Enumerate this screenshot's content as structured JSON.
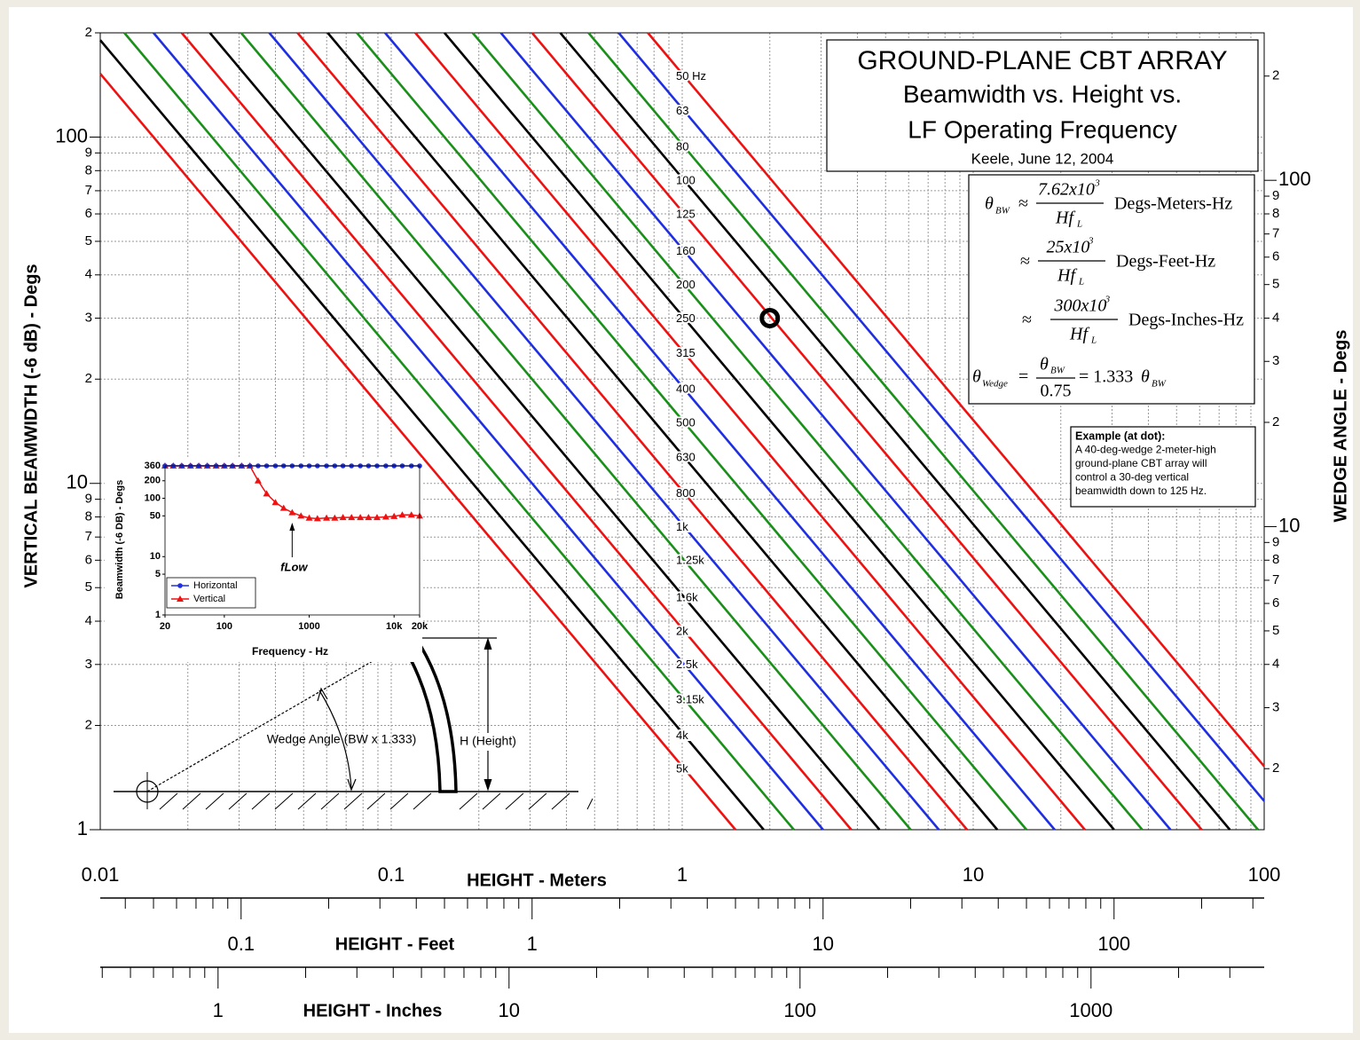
{
  "chart_data": [
    {
      "type": "line",
      "title_lines": [
        "GROUND-PLANE CBT ARRAY",
        "Beamwidth vs. Height vs.",
        "LF Operating Frequency",
        "Keele, June 12, 2004"
      ],
      "xlabel": "HEIGHT - Meters",
      "ylabel": "VERTICAL BEAMWIDTH (-6 dB) - Degs",
      "y2label": "WEDGE ANGLE - Degs",
      "log_x": true,
      "log_y": true,
      "grid": true,
      "xlim": [
        0.01,
        100
      ],
      "xticks": [
        0.01,
        0.1,
        1,
        10,
        100
      ],
      "xminor": [
        0.02,
        0.03,
        0.04,
        0.05,
        0.06,
        0.07,
        0.08,
        0.09,
        0.2,
        0.3,
        0.4,
        0.5,
        0.6,
        0.7,
        0.8,
        0.9,
        2,
        3,
        4,
        5,
        6,
        7,
        8,
        9,
        20,
        30,
        40,
        50,
        60,
        70,
        80,
        90
      ],
      "ylim": [
        1,
        200
      ],
      "yticks": [
        1,
        2,
        3,
        4,
        5,
        6,
        7,
        8,
        9,
        10,
        {
          "value": 20,
          "label": "2"
        },
        {
          "value": 30,
          "label": "3"
        },
        {
          "value": 40,
          "label": "4"
        },
        {
          "value": 50,
          "label": "5"
        },
        {
          "value": 60,
          "label": "6"
        },
        {
          "value": 70,
          "label": "7"
        },
        {
          "value": 80,
          "label": "8"
        },
        {
          "value": 90,
          "label": "9"
        },
        100,
        {
          "value": 200,
          "label": "2"
        }
      ],
      "y2lim": [
        1.333,
        266.6
      ],
      "y2ticks": [
        2,
        3,
        4,
        5,
        6,
        7,
        8,
        9,
        10,
        {
          "value": 20,
          "label": "2"
        },
        {
          "value": 30,
          "label": "3"
        },
        {
          "value": 40,
          "label": "4"
        },
        {
          "value": 50,
          "label": "5"
        },
        {
          "value": 60,
          "label": "6"
        },
        {
          "value": 70,
          "label": "7"
        },
        {
          "value": 80,
          "label": "8"
        },
        {
          "value": 90,
          "label": "9"
        },
        100,
        {
          "value": 200,
          "label": "2"
        }
      ],
      "feet_axis": {
        "label": "HEIGHT - Feet",
        "lim": [
          0.032808,
          328.08
        ],
        "ticks": [
          0.1,
          1,
          10,
          100
        ],
        "minor": [
          0.04,
          0.05,
          0.06,
          0.07,
          0.08,
          0.09,
          0.2,
          0.3,
          0.4,
          0.5,
          0.6,
          0.7,
          0.8,
          0.9,
          2,
          3,
          4,
          5,
          6,
          7,
          8,
          9,
          20,
          30,
          40,
          50,
          60,
          70,
          80,
          90,
          200,
          300
        ]
      },
      "inch_axis": {
        "label": "HEIGHT - Inches",
        "lim": [
          0.3937,
          3937
        ],
        "ticks": [
          1,
          10,
          100,
          1000
        ],
        "minor": [
          0.4,
          0.5,
          0.6,
          0.7,
          0.8,
          0.9,
          2,
          3,
          4,
          5,
          6,
          7,
          8,
          9,
          20,
          30,
          40,
          50,
          60,
          70,
          80,
          90,
          200,
          300,
          400,
          500,
          600,
          700,
          800,
          900,
          2000,
          3000
        ]
      },
      "series": [
        {
          "name": "5k",
          "color": "#ee1111",
          "x": [
            0.01,
            1.524
          ],
          "values": [
            152.4,
            1
          ]
        },
        {
          "name": "4k",
          "color": "#000000",
          "x": [
            0.01,
            1.905
          ],
          "values": [
            190.5,
            1
          ]
        },
        {
          "name": "3.15k",
          "color": "#1a8f1a",
          "x": [
            0.0121,
            2.419
          ],
          "values": [
            200,
            1
          ]
        },
        {
          "name": "2.5k",
          "color": "#1f2fe0",
          "x": [
            0.01524,
            3.048
          ],
          "values": [
            200,
            1
          ]
        },
        {
          "name": "2k",
          "color": "#ee1111",
          "x": [
            0.01905,
            3.81
          ],
          "values": [
            200,
            1
          ]
        },
        {
          "name": "1.6k",
          "color": "#000000",
          "x": [
            0.02381,
            4.763
          ],
          "values": [
            200,
            1
          ]
        },
        {
          "name": "1.25k",
          "color": "#1a8f1a",
          "x": [
            0.03048,
            6.096
          ],
          "values": [
            200,
            1
          ]
        },
        {
          "name": "1k",
          "color": "#1f2fe0",
          "x": [
            0.0381,
            7.62
          ],
          "values": [
            200,
            1
          ]
        },
        {
          "name": "800",
          "color": "#ee1111",
          "x": [
            0.04763,
            9.525
          ],
          "values": [
            200,
            1
          ]
        },
        {
          "name": "630",
          "color": "#000000",
          "x": [
            0.06048,
            12.1
          ],
          "values": [
            200,
            1
          ]
        },
        {
          "name": "500",
          "color": "#1a8f1a",
          "x": [
            0.0762,
            15.24
          ],
          "values": [
            200,
            1
          ]
        },
        {
          "name": "400",
          "color": "#1f2fe0",
          "x": [
            0.09525,
            19.05
          ],
          "values": [
            200,
            1
          ]
        },
        {
          "name": "315",
          "color": "#ee1111",
          "x": [
            0.121,
            24.19
          ],
          "values": [
            200,
            1
          ]
        },
        {
          "name": "250",
          "color": "#000000",
          "x": [
            0.1524,
            30.48
          ],
          "values": [
            200,
            1
          ]
        },
        {
          "name": "200",
          "color": "#1a8f1a",
          "x": [
            0.1905,
            38.1
          ],
          "values": [
            200,
            1
          ]
        },
        {
          "name": "160",
          "color": "#1f2fe0",
          "x": [
            0.2381,
            47.63
          ],
          "values": [
            200,
            1
          ]
        },
        {
          "name": "125",
          "color": "#ee1111",
          "x": [
            0.3048,
            60.96
          ],
          "values": [
            200,
            1
          ]
        },
        {
          "name": "100",
          "color": "#000000",
          "x": [
            0.381,
            76.2
          ],
          "values": [
            200,
            1
          ]
        },
        {
          "name": "80",
          "color": "#1a8f1a",
          "x": [
            0.4763,
            95.25
          ],
          "values": [
            200,
            1
          ]
        },
        {
          "name": "63",
          "color": "#1f2fe0",
          "x": [
            0.6048,
            100
          ],
          "values": [
            200,
            1.21
          ]
        },
        {
          "name": "50 Hz",
          "color": "#ee1111",
          "x": [
            0.762,
            100
          ],
          "values": [
            200,
            1.524
          ]
        }
      ],
      "example_point": {
        "x": 2,
        "y": 30
      },
      "formula": {
        "theta": "θ",
        "bw_sub": "BW",
        "approx": "≈",
        "lines": [
          {
            "num": "7.62x10",
            "sup": "3",
            "den": "Hf",
            "den_sub": "L",
            "units": "Degs-Meters-Hz"
          },
          {
            "num": "25x10",
            "sup": "3",
            "den": "Hf",
            "den_sub": "L",
            "units": "Degs-Feet-Hz"
          },
          {
            "num": "300x10",
            "sup": "3",
            "den": "Hf",
            "den_sub": "L",
            "units": "Degs-Inches-Hz"
          }
        ],
        "wedge_sub": "Wedge",
        "equals": "=",
        "wedge_den": "0.75",
        "wedge_rhs": "= 1.333"
      },
      "example_text": [
        "Example (at dot):",
        "A 40-deg-wedge 2-meter-high",
        "ground-plane CBT array will",
        "control a 30-deg vertical",
        "beamwidth down to 125 Hz."
      ],
      "diagram_labels": {
        "wedge": "Wedge Angle (BW x 1.333)",
        "height": "H (Height)"
      }
    },
    {
      "type": "line",
      "xlabel": "Frequency - Hz",
      "ylabel": "Beamwidth (-6 DB) - Degs",
      "log_x": true,
      "log_y": true,
      "legend": "lower left",
      "xlim": [
        20,
        20000
      ],
      "xticks": [
        20,
        100,
        1000,
        {
          "value": 10000,
          "label": "10k"
        },
        {
          "value": 20000,
          "label": "20k"
        }
      ],
      "ylim": [
        1,
        360
      ],
      "yticks": [
        1,
        5,
        10,
        50,
        100,
        200,
        360
      ],
      "x": [
        20,
        25,
        31.5,
        40,
        50,
        63,
        80,
        100,
        125,
        160,
        200,
        250,
        315,
        400,
        500,
        630,
        800,
        1000,
        1250,
        1600,
        2000,
        2500,
        3150,
        4000,
        5000,
        6300,
        8000,
        10000,
        12500,
        16000,
        20000
      ],
      "series": [
        {
          "name": "Horizontal",
          "color": "#2030e0",
          "marker": "circle",
          "values": [
            360,
            360,
            360,
            360,
            360,
            360,
            360,
            360,
            360,
            360,
            360,
            360,
            360,
            360,
            360,
            360,
            360,
            360,
            360,
            360,
            360,
            360,
            360,
            360,
            360,
            360,
            360,
            360,
            360,
            360,
            360
          ]
        },
        {
          "name": "Vertical",
          "color": "#ee1111",
          "marker": "triangle",
          "values": [
            360,
            360,
            360,
            360,
            360,
            360,
            360,
            360,
            360,
            360,
            360,
            200,
            120,
            85,
            68,
            57,
            50,
            46,
            45,
            46,
            46,
            47,
            47,
            47,
            47,
            47,
            48,
            49,
            52,
            52,
            50
          ]
        }
      ],
      "annotation": {
        "text": "fLow",
        "x": 630
      }
    }
  ]
}
